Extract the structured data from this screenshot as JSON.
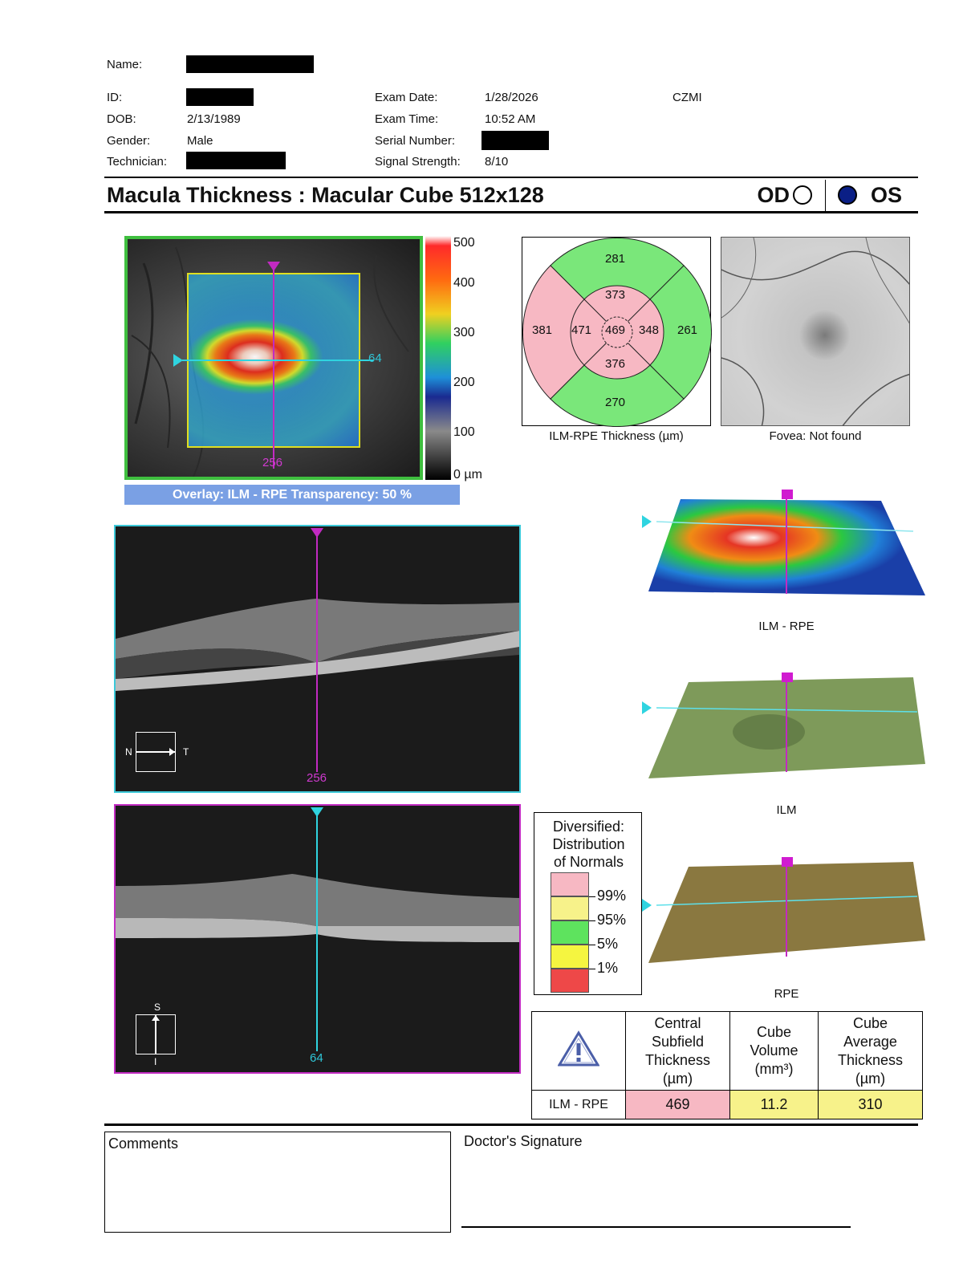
{
  "patient": {
    "name_label": "Name:",
    "id_label": "ID:",
    "dob_label": "DOB:",
    "dob": "2/13/1989",
    "gender_label": "Gender:",
    "gender": "Male",
    "technician_label": "Technician:"
  },
  "exam": {
    "date_label": "Exam Date:",
    "date": "1/28/2026",
    "time_label": "Exam Time:",
    "time": "10:52 AM",
    "serial_label": "Serial Number:",
    "signal_label": "Signal Strength:",
    "signal": "8/10",
    "device": "CZMI"
  },
  "report": {
    "title": "Macula Thickness : Macular Cube 512x128",
    "eye_od": "OD",
    "eye_os": "OS",
    "selected_eye": "OS"
  },
  "fundus_overlay": {
    "caption": "Overlay: ILM - RPE  Transparency: 50 %",
    "vertical_marker": "256",
    "horizontal_marker": "64",
    "scale_labels": [
      "500",
      "400",
      "300",
      "200",
      "100",
      "0 µm"
    ]
  },
  "etdrs": {
    "caption": "ILM-RPE Thickness (µm)",
    "center": "469",
    "inner_superior": "373",
    "inner_nasal": "471",
    "inner_temporal": "348",
    "inner_inferior": "376",
    "outer_superior": "281",
    "outer_nasal": "381",
    "outer_temporal": "261",
    "outer_inferior": "270",
    "colors": {
      "green": "#7ae77a",
      "pink": "#f7b8c3"
    }
  },
  "fovea": {
    "caption": "Fovea: Not found"
  },
  "bscan_horizontal": {
    "marker": "256",
    "left": "N",
    "right": "T"
  },
  "bscan_vertical": {
    "marker": "64",
    "top": "S",
    "bottom": "I"
  },
  "maps3d": {
    "ilm_rpe": "ILM - RPE",
    "ilm": "ILM",
    "rpe": "RPE"
  },
  "legend": {
    "title_lines": [
      "Diversified:",
      "Distribution",
      "of Normals"
    ],
    "percentiles": [
      "99%",
      "95%",
      "5%",
      "1%"
    ],
    "colors": [
      "#f7b8c3",
      "#f7f28a",
      "#5ee35e",
      "#f5f540",
      "#ee4848"
    ]
  },
  "summary": {
    "headers": [
      "Central Subfield Thickness (µm)",
      "Cube Volume (mm³)",
      "Cube Average Thickness (µm)"
    ],
    "header_lines": [
      [
        "Central",
        "Subfield",
        "Thickness",
        "(µm)"
      ],
      [
        "Cube",
        "Volume",
        "(mm³)"
      ],
      [
        "Cube",
        "Average",
        "Thickness",
        "(µm)"
      ]
    ],
    "row_label": "ILM - RPE",
    "values": [
      "469",
      "11.2",
      "310"
    ],
    "value_colors": [
      "#f7b8c3",
      "#f7f28a",
      "#f7f28a"
    ]
  },
  "footer": {
    "comments_label": "Comments",
    "signature_label": "Doctor's Signature"
  }
}
